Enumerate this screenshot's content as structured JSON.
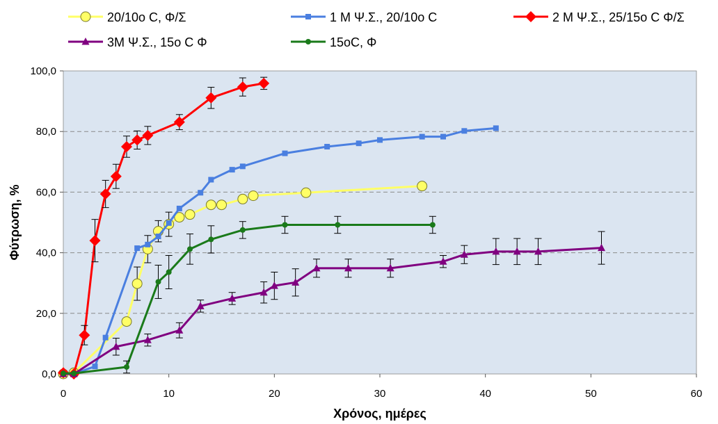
{
  "chart_data": {
    "type": "line",
    "xlabel": "Χρόνος, ημέρες",
    "ylabel": "Φύτρωση, %",
    "xlim": [
      0,
      60
    ],
    "ylim": [
      0,
      100
    ],
    "x_ticks": [
      0,
      10,
      20,
      30,
      40,
      50,
      60
    ],
    "y_ticks": [
      0,
      20,
      40,
      60,
      80,
      100
    ],
    "y_tick_labels": [
      "0,0",
      "20,0",
      "40,0",
      "60,0",
      "80,0",
      "100,0"
    ],
    "grid": "horizontal dashed",
    "legend": "top",
    "plot_background": "#dbe5f1",
    "series": [
      {
        "name": "20/10o C, Φ/Σ",
        "color": "#ffff66",
        "marker": "circle",
        "x": [
          0,
          1,
          6,
          7,
          8,
          9,
          10,
          11,
          12,
          14,
          15,
          17,
          18,
          23,
          34
        ],
        "y": [
          0,
          0.4,
          17.3,
          29.8,
          41.2,
          47.1,
          49.4,
          51.7,
          52.6,
          55.8,
          55.8,
          57.7,
          58.8,
          59.8,
          62.0
        ],
        "err": [
          0,
          0,
          0,
          5.5,
          4.5,
          3.5,
          4.0,
          0,
          0,
          0,
          0,
          0,
          0,
          0,
          0
        ]
      },
      {
        "name": "1 M Ψ.Σ., 20/10o C",
        "color": "#4a7fe0",
        "marker": "square",
        "x": [
          0,
          1,
          3,
          4,
          7,
          8,
          9,
          10,
          11,
          13,
          14,
          16,
          17,
          21,
          25,
          28,
          30,
          34,
          36,
          38,
          41
        ],
        "y": [
          0,
          0,
          2.5,
          12.0,
          41.5,
          42.7,
          45.4,
          49.8,
          54.6,
          59.8,
          64.1,
          67.4,
          68.5,
          72.8,
          75.0,
          76.1,
          77.2,
          78.3,
          78.3,
          80.2,
          81.1
        ],
        "err": [
          0,
          0,
          0,
          0,
          0,
          0,
          0,
          0,
          0,
          0,
          0,
          0,
          0,
          0,
          0,
          0,
          0,
          0,
          0,
          0,
          0
        ]
      },
      {
        "name": "2 M Ψ.Σ., 25/15o C Φ/Σ",
        "color": "#ff0000",
        "marker": "diamond",
        "x": [
          0,
          1,
          2,
          3,
          4,
          5,
          6,
          7,
          8,
          11,
          14,
          17,
          19
        ],
        "y": [
          0.4,
          0,
          12.8,
          44.0,
          59.4,
          65.2,
          75.0,
          77.2,
          78.7,
          83.1,
          91.1,
          94.7,
          95.9
        ],
        "err": [
          0,
          0,
          3.2,
          7.0,
          4.5,
          4.0,
          3.5,
          3.0,
          3.0,
          2.5,
          3.5,
          3.0,
          2.0
        ]
      },
      {
        "name": "3M Ψ.Σ., 15o C Φ",
        "color": "#800080",
        "marker": "triangle",
        "x": [
          0,
          1,
          5,
          8,
          11,
          13,
          16,
          19,
          20,
          22,
          24,
          27,
          31,
          36,
          38,
          41,
          43,
          45,
          51
        ],
        "y": [
          0,
          0,
          9.0,
          11.2,
          14.4,
          22.4,
          24.9,
          26.9,
          29.1,
          30.2,
          34.9,
          34.9,
          34.9,
          37.1,
          39.4,
          40.4,
          40.4,
          40.4,
          41.6
        ],
        "err": [
          0,
          0,
          2.8,
          2.0,
          2.5,
          2.0,
          2.0,
          3.5,
          4.5,
          4.5,
          3.0,
          3.0,
          3.0,
          2.0,
          3.0,
          4.3,
          4.3,
          4.3,
          5.4
        ]
      },
      {
        "name": "15oC, Φ",
        "color": "#1a7a1a",
        "marker": "dot",
        "x": [
          0,
          1,
          6,
          9,
          10,
          12,
          14,
          17,
          21,
          26,
          35
        ],
        "y": [
          0.2,
          0.2,
          2.3,
          30.4,
          33.6,
          41.2,
          44.4,
          47.5,
          49.2,
          49.2,
          49.2
        ],
        "err": [
          0,
          0,
          2.0,
          5.5,
          5.5,
          5.0,
          4.5,
          2.8,
          2.8,
          2.8,
          2.8
        ]
      }
    ]
  }
}
